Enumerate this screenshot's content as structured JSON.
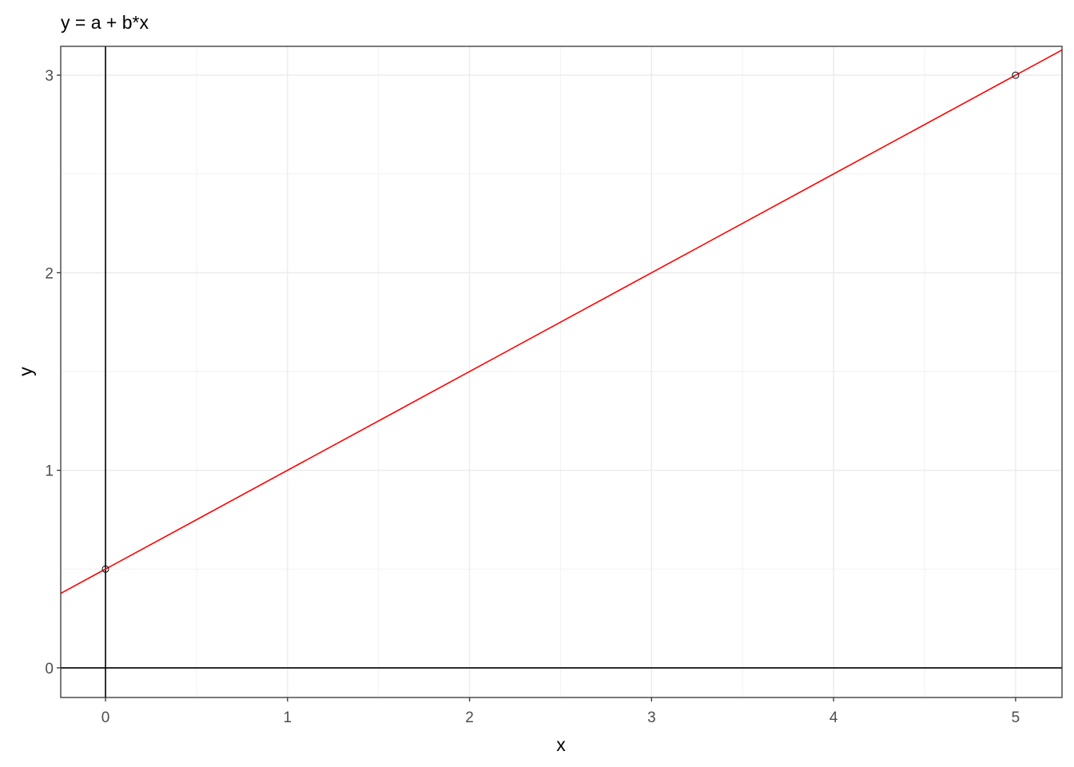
{
  "chart_data": {
    "type": "line",
    "title": "y = a + b*x",
    "xlabel": "x",
    "ylabel": "y",
    "xlim": [
      -0.246,
      5.255
    ],
    "ylim": [
      -0.15,
      3.146
    ],
    "x_ticks": [
      "0",
      "1",
      "2",
      "3",
      "4",
      "5"
    ],
    "y_ticks": [
      "0",
      "1",
      "2",
      "3"
    ],
    "grid": true,
    "reference_lines": {
      "hline_y": 0,
      "vline_x": 0
    },
    "line": {
      "intercept": 0.5,
      "slope": 0.5,
      "color": "#ff0000"
    },
    "points": [
      {
        "x": 0,
        "y": 0.5
      },
      {
        "x": 5,
        "y": 3
      }
    ],
    "point_color": "#000000"
  }
}
